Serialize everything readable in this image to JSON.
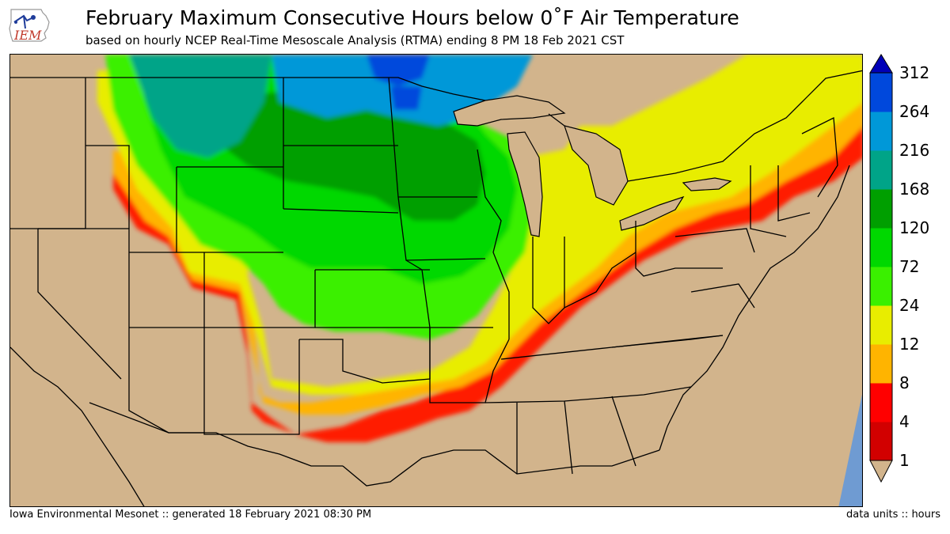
{
  "header": {
    "logo_text": "IEM",
    "title": "February Maximum Consecutive Hours below 0˚F Air Temperature",
    "subtitle": "based on hourly NCEP Real-Time Mesoscale Analysis (RTMA) ending 8 PM 18 Feb 2021 CST"
  },
  "map": {
    "land_color": "#d2b48c",
    "water_color": "#6f9bd2",
    "boundary_color": "#000000"
  },
  "colorbar": {
    "levels": [
      "1",
      "4",
      "8",
      "12",
      "24",
      "72",
      "120",
      "168",
      "216",
      "264",
      "312"
    ],
    "colors": [
      "#d20000",
      "#ff0000",
      "#ffb400",
      "#e8ed00",
      "#3af000",
      "#00d800",
      "#009f00",
      "#00a488",
      "#0098d8",
      "#0048dc"
    ],
    "under_color": "#d2b48c",
    "over_color": "#0000b8"
  },
  "footer": {
    "left": "Iowa Environmental Mesonet :: generated 18 February 2021 08:30 PM",
    "right": "data units :: hours"
  }
}
